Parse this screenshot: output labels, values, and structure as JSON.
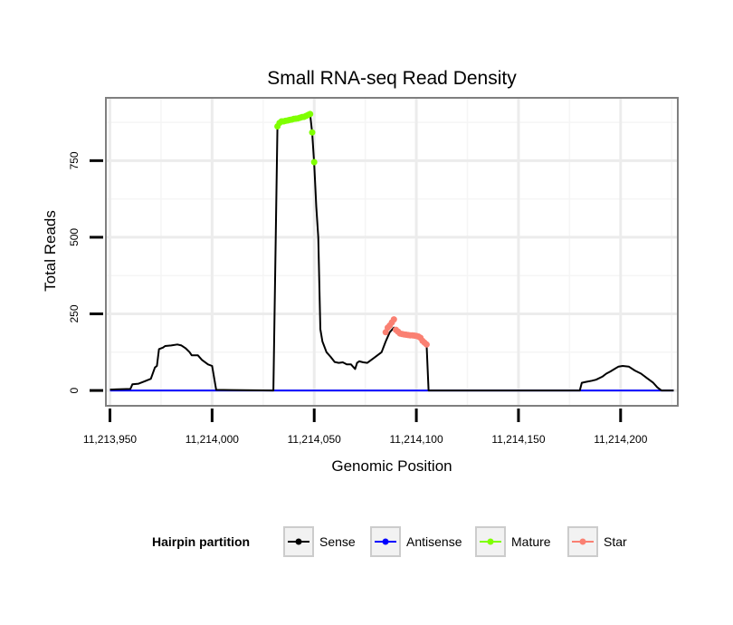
{
  "chart_data": {
    "type": "line",
    "title": "Small RNA-seq Read Density",
    "xlabel": "Genomic Position",
    "ylabel": "Total Reads",
    "xlim": [
      11213948,
      11214228
    ],
    "ylim": [
      -50,
      955
    ],
    "x_ticks": [
      11213950,
      11214000,
      11214050,
      11214100,
      11214150,
      11214200
    ],
    "x_tick_labels": [
      "11,213,950",
      "11,214,000",
      "11,214,050",
      "11,214,100",
      "11,214,150",
      "11,214,200"
    ],
    "y_ticks": [
      0,
      250,
      500,
      750
    ],
    "y_tick_labels": [
      "0",
      "250",
      "500",
      "750"
    ],
    "grid": true,
    "legend_position": "bottom",
    "legend_title": "Hairpin partition",
    "legend": [
      {
        "name": "Sense",
        "color": "#000000"
      },
      {
        "name": "Antisense",
        "color": "#0000ff"
      },
      {
        "name": "Mature",
        "color": "#7fff00"
      },
      {
        "name": "Star",
        "color": "#fa8072"
      }
    ],
    "series": [
      {
        "name": "Sense",
        "color": "#000000",
        "line": true,
        "markers": false,
        "points": [
          [
            11213950,
            3
          ],
          [
            11213960,
            5
          ],
          [
            11213961,
            20
          ],
          [
            11213964,
            22
          ],
          [
            11213967,
            30
          ],
          [
            11213970,
            38
          ],
          [
            11213972,
            75
          ],
          [
            11213973,
            80
          ],
          [
            11213974,
            135
          ],
          [
            11213976,
            140
          ],
          [
            11213977,
            145
          ],
          [
            11213980,
            147
          ],
          [
            11213983,
            150
          ],
          [
            11213985,
            147
          ],
          [
            11213987,
            138
          ],
          [
            11213989,
            125
          ],
          [
            11213990,
            115
          ],
          [
            11213993,
            115
          ],
          [
            11213995,
            100
          ],
          [
            11213998,
            85
          ],
          [
            11214000,
            80
          ],
          [
            11214002,
            2
          ],
          [
            11214030,
            0
          ],
          [
            11214032,
            862
          ],
          [
            11214033,
            873
          ],
          [
            11214035,
            878
          ],
          [
            11214040,
            885
          ],
          [
            11214045,
            893
          ],
          [
            11214048,
            902
          ],
          [
            11214049,
            840
          ],
          [
            11214050,
            740
          ],
          [
            11214051,
            600
          ],
          [
            11214052,
            500
          ],
          [
            11214053,
            200
          ],
          [
            11214054,
            160
          ],
          [
            11214056,
            125
          ],
          [
            11214058,
            110
          ],
          [
            11214060,
            93
          ],
          [
            11214062,
            90
          ],
          [
            11214064,
            92
          ],
          [
            11214066,
            85
          ],
          [
            11214068,
            85
          ],
          [
            11214070,
            70
          ],
          [
            11214071,
            90
          ],
          [
            11214072,
            95
          ],
          [
            11214074,
            92
          ],
          [
            11214076,
            90
          ],
          [
            11214079,
            105
          ],
          [
            11214081,
            115
          ],
          [
            11214083,
            125
          ],
          [
            11214085,
            160
          ],
          [
            11214087,
            190
          ],
          [
            11214089,
            205
          ],
          [
            11214091,
            195
          ],
          [
            11214093,
            185
          ],
          [
            11214095,
            182
          ],
          [
            11214098,
            180
          ],
          [
            11214100,
            178
          ],
          [
            11214102,
            175
          ],
          [
            11214104,
            160
          ],
          [
            11214105,
            150
          ],
          [
            11214106,
            0
          ],
          [
            11214180,
            0
          ],
          [
            11214181,
            25
          ],
          [
            11214183,
            28
          ],
          [
            11214186,
            32
          ],
          [
            11214188,
            35
          ],
          [
            11214191,
            45
          ],
          [
            11214193,
            55
          ],
          [
            11214195,
            62
          ],
          [
            11214197,
            70
          ],
          [
            11214199,
            78
          ],
          [
            11214201,
            80
          ],
          [
            11214204,
            78
          ],
          [
            11214207,
            65
          ],
          [
            11214210,
            55
          ],
          [
            11214213,
            40
          ],
          [
            11214216,
            25
          ],
          [
            11214218,
            10
          ],
          [
            11214220,
            0
          ],
          [
            11214226,
            0
          ]
        ]
      },
      {
        "name": "Antisense",
        "color": "#0000ff",
        "line": true,
        "markers": false,
        "points": [
          [
            11213950,
            0
          ],
          [
            11214226,
            0
          ]
        ]
      },
      {
        "name": "Mature",
        "color": "#7fff00",
        "line": false,
        "markers": true,
        "points": [
          [
            11214032,
            862
          ],
          [
            11214033,
            873
          ],
          [
            11214034,
            878
          ],
          [
            11214035,
            878
          ],
          [
            11214036,
            880
          ],
          [
            11214037,
            881
          ],
          [
            11214038,
            883
          ],
          [
            11214039,
            884
          ],
          [
            11214040,
            886
          ],
          [
            11214041,
            887
          ],
          [
            11214042,
            888
          ],
          [
            11214043,
            890
          ],
          [
            11214044,
            892
          ],
          [
            11214045,
            893
          ],
          [
            11214046,
            896
          ],
          [
            11214047,
            899
          ],
          [
            11214048,
            902
          ],
          [
            11214049,
            842
          ],
          [
            11214050,
            745
          ]
        ]
      },
      {
        "name": "Star",
        "color": "#fa8072",
        "line": false,
        "markers": true,
        "points": [
          [
            11214085,
            190
          ],
          [
            11214086,
            205
          ],
          [
            11214087,
            212
          ],
          [
            11214088,
            222
          ],
          [
            11214089,
            232
          ],
          [
            11214090,
            198
          ],
          [
            11214091,
            192
          ],
          [
            11214092,
            186
          ],
          [
            11214093,
            184
          ],
          [
            11214094,
            183
          ],
          [
            11214095,
            182
          ],
          [
            11214096,
            181
          ],
          [
            11214097,
            180
          ],
          [
            11214098,
            180
          ],
          [
            11214099,
            179
          ],
          [
            11214100,
            178
          ],
          [
            11214101,
            176
          ],
          [
            11214102,
            172
          ],
          [
            11214103,
            162
          ],
          [
            11214104,
            156
          ],
          [
            11214105,
            150
          ]
        ]
      }
    ]
  }
}
